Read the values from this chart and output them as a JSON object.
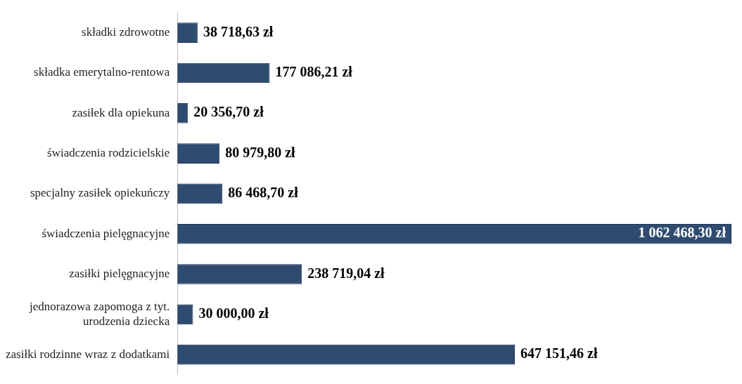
{
  "chart_data": {
    "type": "bar",
    "orientation": "horizontal",
    "categories": [
      "składki zdrowotne",
      "składka emerytalno-rentowa",
      "zasiłek dla opiekuna",
      "świadczenia rodzicielskie",
      "specjalny zasiłek opiekuńczy",
      "świadczenia pielęgnacyjne",
      "zasiłki pielęgnacyjne",
      "jednorazowa zapomoga z tyt. urodzenia dziecka",
      "zasiłki rodzinne wraz z dodatkami"
    ],
    "values": [
      38718.63,
      177086.21,
      20356.7,
      80979.8,
      86468.7,
      1062468.3,
      238719.04,
      30000.0,
      647151.46
    ],
    "value_labels": [
      "38 718,63 zł",
      "177 086,21 zł",
      "20 356,70 zł",
      "80 979,80 zł",
      "86 468,70 zł",
      "1 062 468,30 zł",
      "238 719,04 zł",
      "30 000,00 zł",
      "647 151,46 zł"
    ],
    "color": "#2f4b70",
    "grid": false,
    "legend": false
  }
}
